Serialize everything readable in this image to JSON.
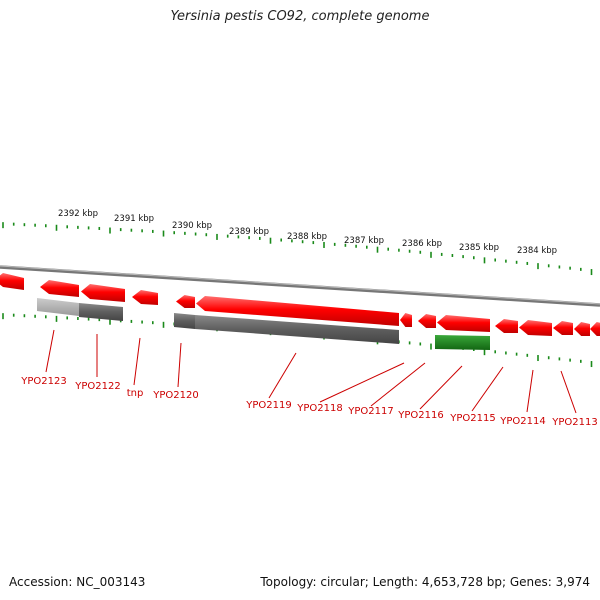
{
  "title": "Yersinia pestis CO92, complete genome",
  "footer": {
    "accession_label": "Accession:",
    "accession": "NC_003143",
    "topology_text": "Topology: circular; Length: 4,653,728 bp; Genes: 3,974"
  },
  "scale_labels": [
    "2392 kbp",
    "2391 kbp",
    "2390 kbp",
    "2389 kbp",
    "2388 kbp",
    "2387 kbp",
    "2386 kbp",
    "2385 kbp",
    "2384 kbp"
  ],
  "gene_labels": [
    "YPO2123",
    "YPO2122",
    "tnp",
    "YPO2120",
    "YPO2119",
    "YPO2118",
    "YPO2117",
    "YPO2116",
    "YPO2115",
    "YPO2114",
    "YPO2113"
  ],
  "colors": {
    "cds": "#ff0000",
    "pseudogene": "#666666",
    "pseudogene_light": "#aaaaaa",
    "rna": "#1a8a1a",
    "ticks": "#1a8a1a",
    "label_lines": "#cc0000",
    "backbone": "#888888"
  }
}
